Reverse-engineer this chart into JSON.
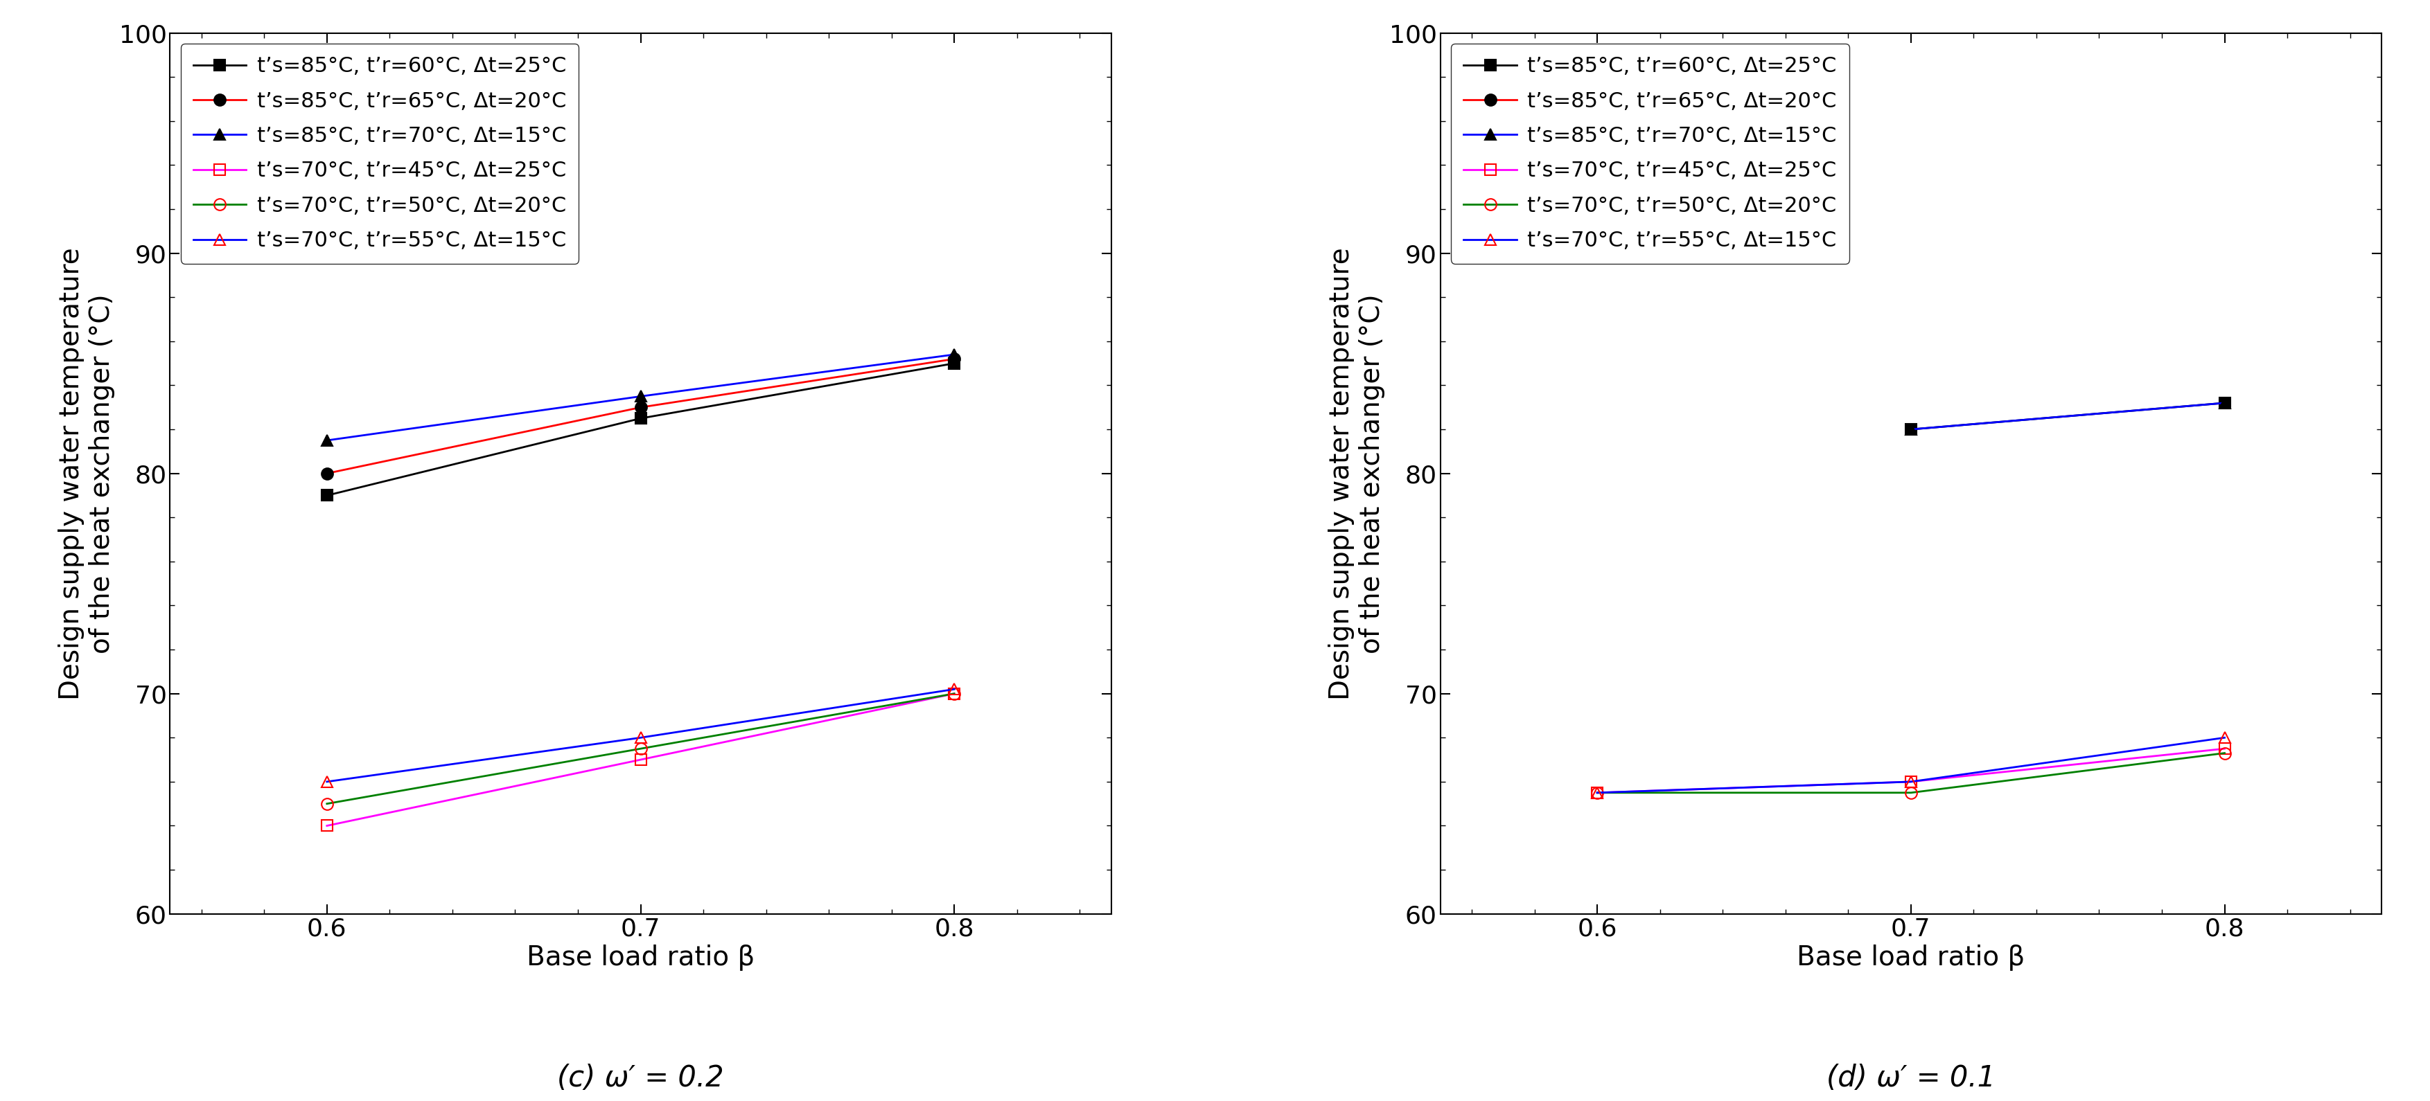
{
  "x": [
    0.6,
    0.7,
    0.8
  ],
  "panel_c": {
    "title": "(c) ω′ = 0.2",
    "series": [
      {
        "label": "t’s=85°C, t’r=60°C, Δt=25°C",
        "line_color": "black",
        "marker": "s",
        "marker_color": "black",
        "filled": true,
        "y": [
          79.0,
          82.5,
          85.0
        ]
      },
      {
        "label": "t’s=85°C, t’r=65°C, Δt=20°C",
        "line_color": "red",
        "marker": "o",
        "marker_color": "black",
        "filled": true,
        "y": [
          80.0,
          83.0,
          85.2
        ]
      },
      {
        "label": "t’s=85°C, t’r=70°C, Δt=15°C",
        "line_color": "blue",
        "marker": "^",
        "marker_color": "black",
        "filled": true,
        "y": [
          81.5,
          83.5,
          85.4
        ]
      },
      {
        "label": "t’s=70°C, t’r=45°C, Δt=25°C",
        "line_color": "magenta",
        "marker": "s",
        "marker_color": "red",
        "filled": false,
        "y": [
          64.0,
          67.0,
          70.0
        ]
      },
      {
        "label": "t’s=70°C, t’r=50°C, Δt=20°C",
        "line_color": "green",
        "marker": "o",
        "marker_color": "red",
        "filled": false,
        "y": [
          65.0,
          67.5,
          70.0
        ]
      },
      {
        "label": "t’s=70°C, t’r=55°C, Δt=15°C",
        "line_color": "blue",
        "marker": "^",
        "marker_color": "red",
        "filled": false,
        "y": [
          66.0,
          68.0,
          70.2
        ]
      }
    ]
  },
  "panel_d": {
    "title": "(d) ω′ = 0.1",
    "series": [
      {
        "label": "t’s=85°C, t’r=60°C, Δt=25°C",
        "line_color": "black",
        "marker": "s",
        "marker_color": "black",
        "filled": true,
        "y": [
          null,
          82.0,
          83.2
        ]
      },
      {
        "label": "t’s=85°C, t’r=65°C, Δt=20°C",
        "line_color": "red",
        "marker": "o",
        "marker_color": "black",
        "filled": true,
        "y": [
          null,
          null,
          null
        ]
      },
      {
        "label": "t’s=85°C, t’r=70°C, Δt=15°C",
        "line_color": "blue",
        "marker": "^",
        "marker_color": "black",
        "filled": true,
        "y": [
          null,
          82.0,
          83.2
        ]
      },
      {
        "label": "t’s=70°C, t’r=45°C, Δt=25°C",
        "line_color": "magenta",
        "marker": "s",
        "marker_color": "red",
        "filled": false,
        "y": [
          65.5,
          66.0,
          67.5
        ]
      },
      {
        "label": "t’s=70°C, t’r=50°C, Δt=20°C",
        "line_color": "green",
        "marker": "o",
        "marker_color": "red",
        "filled": false,
        "y": [
          65.5,
          65.5,
          67.3
        ]
      },
      {
        "label": "t’s=70°C, t’r=55°C, Δt=15°C",
        "line_color": "blue",
        "marker": "^",
        "marker_color": "red",
        "filled": false,
        "y": [
          65.5,
          66.0,
          68.0
        ]
      }
    ]
  },
  "ylabel": "Design supply water temperature\nof the heat exchanger (°C)",
  "xlabel": "Base load ratio β",
  "ylim": [
    60,
    100
  ],
  "xlim": [
    0.55,
    0.85
  ],
  "xticks": [
    0.6,
    0.7,
    0.8
  ],
  "yticks": [
    60,
    70,
    80,
    90,
    100
  ],
  "background_color": "#ffffff",
  "label_fontsize": 28,
  "tick_fontsize": 26,
  "legend_fontsize": 22,
  "subtitle_fontsize": 30,
  "markersize": 12,
  "linewidth": 2.0
}
